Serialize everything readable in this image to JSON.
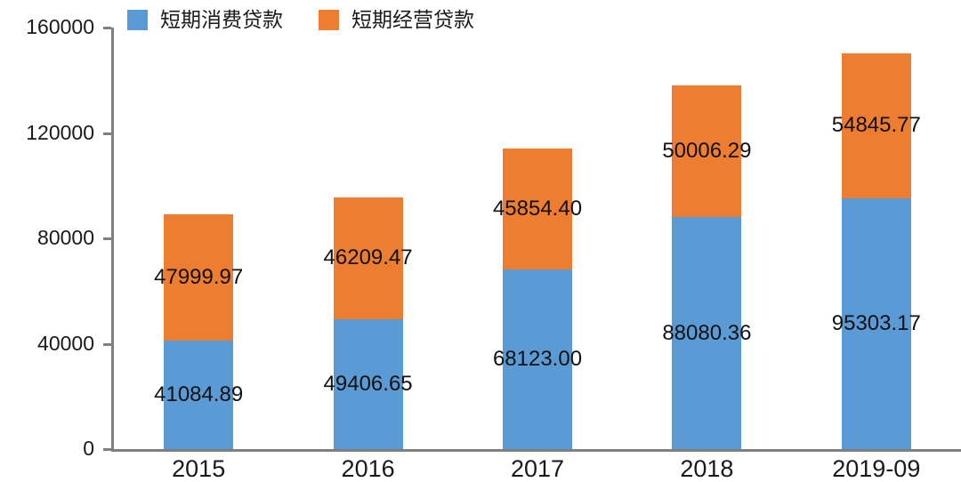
{
  "chart_data": {
    "type": "bar",
    "stacked": true,
    "title": "",
    "xlabel": "",
    "ylabel": "",
    "grid": false,
    "legend_position": "top-left",
    "categories": [
      "2015",
      "2016",
      "2017",
      "2018",
      "2019-09"
    ],
    "series": [
      {
        "name": "短期消费贷款",
        "color": "#5B9BD5",
        "values": [
          41084.89,
          49406.65,
          68123.0,
          88080.36,
          95303.17
        ],
        "labels": [
          "41084.89",
          "49406.65",
          "68123.00",
          "88080.36",
          "95303.17"
        ]
      },
      {
        "name": "短期经营贷款",
        "color": "#ED7D31",
        "values": [
          47999.97,
          46209.47,
          45854.4,
          50006.29,
          54845.77
        ],
        "labels": [
          "47999.97",
          "46209.47",
          "45854.40",
          "50006.29",
          "54845.77"
        ]
      }
    ],
    "ylim": [
      0,
      160000
    ],
    "yticks": [
      0,
      40000,
      80000,
      120000,
      160000
    ],
    "ytick_labels": [
      "0",
      "40000",
      "80000",
      "120000",
      "160000"
    ],
    "data_labels": true
  },
  "colors": {
    "consumer_blue": "#5B9BD5",
    "business_orange": "#ED7D31",
    "axis_gray": "#7f7f7f",
    "text": "#1a1a1a"
  }
}
